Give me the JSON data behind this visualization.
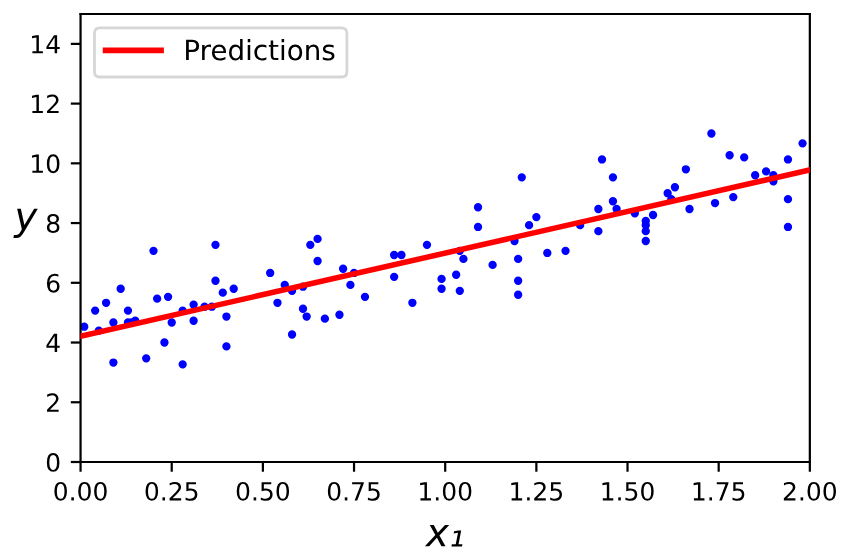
{
  "chart_data": {
    "type": "scatter",
    "xlabel": "x₁",
    "ylabel": "y",
    "xlim": [
      0,
      2
    ],
    "ylim": [
      0,
      15
    ],
    "xticks": [
      {
        "value": 0,
        "label": "0.00"
      },
      {
        "value": 0.25,
        "label": "0.25"
      },
      {
        "value": 0.5,
        "label": "0.50"
      },
      {
        "value": 0.75,
        "label": "0.75"
      },
      {
        "value": 1,
        "label": "1.00"
      },
      {
        "value": 1.25,
        "label": "1.25"
      },
      {
        "value": 1.5,
        "label": "1.50"
      },
      {
        "value": 1.75,
        "label": "1.75"
      },
      {
        "value": 2,
        "label": "2.00"
      }
    ],
    "yticks": [
      0,
      2,
      4,
      6,
      8,
      10,
      12,
      14
    ],
    "grid": false,
    "legend": "top left",
    "series": [
      {
        "color": "#0000ff",
        "marker": "circle",
        "x": [
          0.01,
          0.04,
          0.05,
          0.07,
          0.09,
          0.09,
          0.11,
          0.13,
          0.13,
          0.14,
          0.15,
          0.18,
          0.2,
          0.21,
          0.23,
          0.24,
          0.25,
          0.28,
          0.28,
          0.31,
          0.31,
          0.34,
          0.36,
          0.37,
          0.37,
          0.39,
          0.4,
          0.4,
          0.42,
          0.52,
          0.54,
          0.56,
          0.58,
          0.58,
          0.61,
          0.61,
          0.62,
          0.63,
          0.65,
          0.65,
          0.67,
          0.71,
          0.72,
          0.74,
          0.75,
          0.78,
          0.86,
          0.86,
          0.88,
          0.91,
          0.95,
          0.99,
          0.99,
          1.03,
          1.04,
          1.04,
          1.05,
          1.09,
          1.09,
          1.13,
          1.19,
          1.2,
          1.2,
          1.2,
          1.21,
          1.23,
          1.25,
          1.28,
          1.33,
          1.37,
          1.42,
          1.42,
          1.43,
          1.46,
          1.46,
          1.47,
          1.52,
          1.55,
          1.55,
          1.55,
          1.55,
          1.57,
          1.61,
          1.62,
          1.63,
          1.66,
          1.67,
          1.73,
          1.74,
          1.78,
          1.79,
          1.82,
          1.85,
          1.88,
          1.9,
          1.9,
          1.94,
          1.94,
          1.94,
          1.98
        ],
        "values": [
          4.53,
          5.07,
          4.4,
          5.33,
          4.67,
          3.33,
          5.8,
          5.07,
          4.67,
          4.67,
          4.73,
          3.47,
          7.07,
          5.47,
          4.0,
          5.53,
          4.67,
          5.07,
          3.27,
          5.27,
          4.73,
          5.2,
          5.2,
          7.27,
          6.07,
          5.67,
          3.87,
          4.87,
          5.8,
          6.33,
          5.33,
          5.93,
          5.73,
          4.27,
          5.87,
          5.13,
          4.87,
          7.27,
          7.47,
          6.73,
          4.8,
          4.93,
          6.47,
          5.93,
          6.33,
          5.53,
          6.93,
          6.2,
          6.93,
          5.33,
          7.27,
          6.13,
          5.8,
          6.27,
          7.07,
          5.73,
          6.8,
          8.53,
          7.87,
          6.6,
          7.4,
          6.07,
          5.6,
          6.8,
          9.53,
          7.93,
          8.2,
          7.0,
          7.07,
          7.93,
          8.47,
          7.73,
          10.13,
          9.53,
          8.73,
          8.47,
          8.33,
          7.93,
          7.73,
          7.4,
          8.07,
          8.27,
          9.0,
          8.8,
          9.2,
          9.8,
          8.47,
          11.0,
          8.67,
          10.27,
          8.87,
          10.2,
          9.6,
          9.73,
          9.6,
          9.4,
          7.87,
          10.13,
          8.8,
          10.67
        ]
      },
      {
        "type": "line",
        "name": "Predictions",
        "color": "#ff0000",
        "line_style": "solid",
        "marker": "none",
        "x": [
          0,
          2
        ],
        "values": [
          4.21,
          9.78
        ]
      }
    ]
  }
}
